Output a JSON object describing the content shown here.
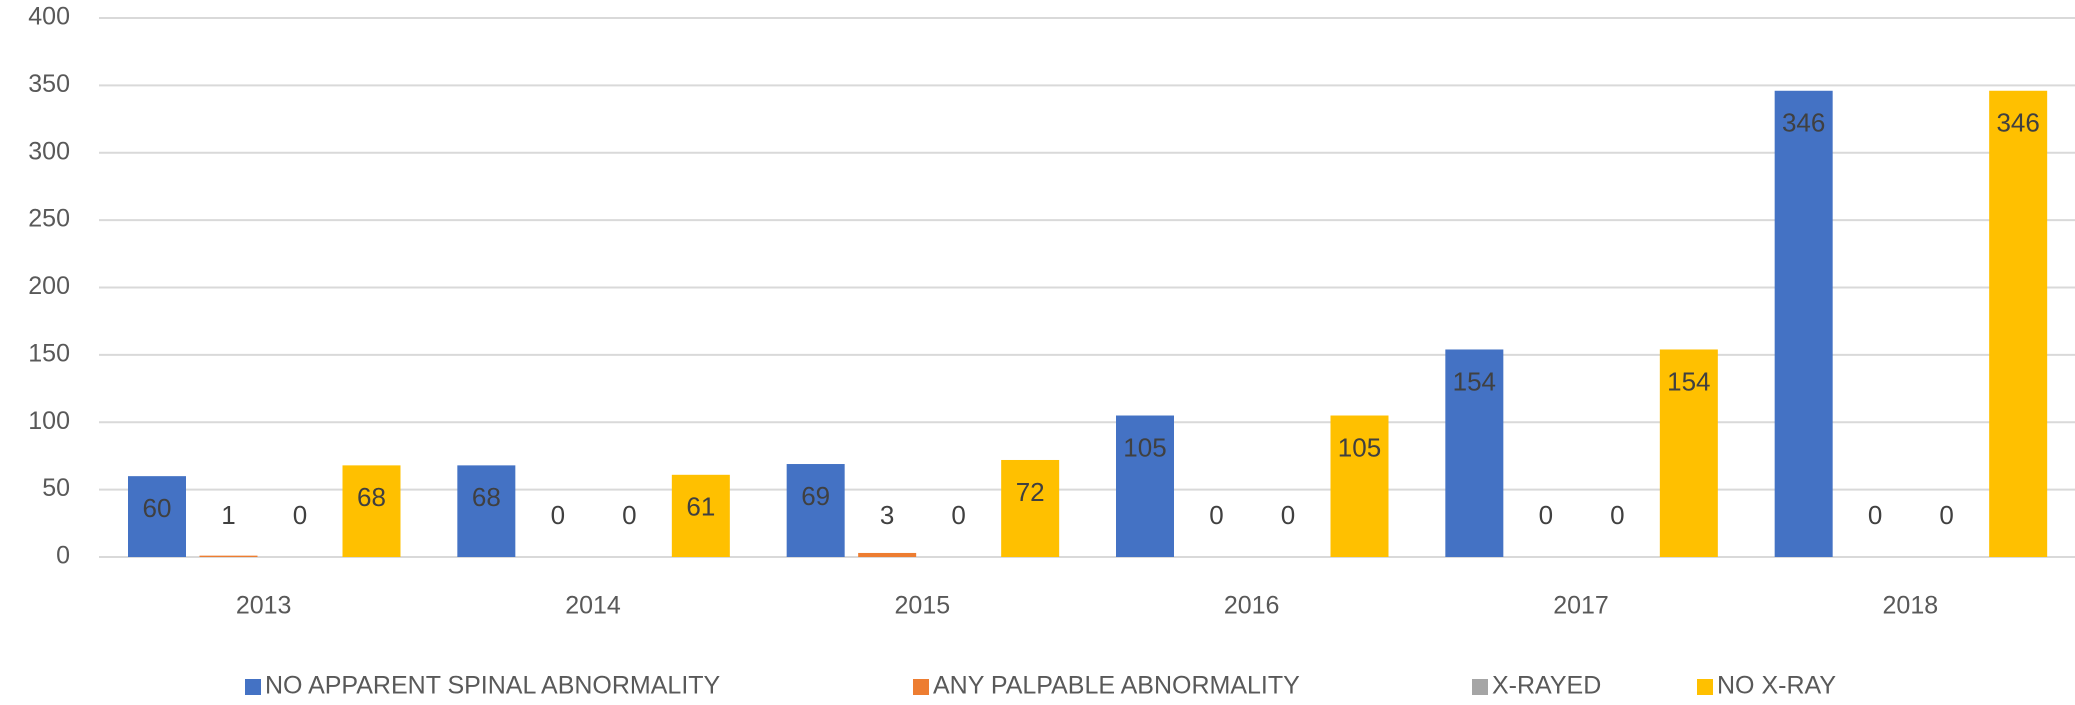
{
  "chart_data": {
    "type": "bar",
    "categories": [
      "2013",
      "2014",
      "2015",
      "2016",
      "2017",
      "2018"
    ],
    "series": [
      {
        "name": "NO APPARENT SPINAL ABNORMALITY",
        "color": "#4472c4",
        "values": [
          60,
          68,
          69,
          105,
          154,
          346
        ]
      },
      {
        "name": "ANY PALPABLE ABNORMALITY",
        "color": "#ed7d31",
        "values": [
          1,
          0,
          3,
          0,
          0,
          0
        ]
      },
      {
        "name": "X-RAYED",
        "color": "#a5a5a5",
        "values": [
          0,
          0,
          0,
          0,
          0,
          0
        ]
      },
      {
        "name": "NO X-RAY",
        "color": "#ffc000",
        "values": [
          68,
          61,
          72,
          105,
          154,
          346
        ]
      }
    ],
    "ylim": [
      0,
      400
    ],
    "yticks": [
      0,
      50,
      100,
      150,
      200,
      250,
      300,
      350,
      400
    ],
    "grid": true,
    "legend": "bottom"
  }
}
